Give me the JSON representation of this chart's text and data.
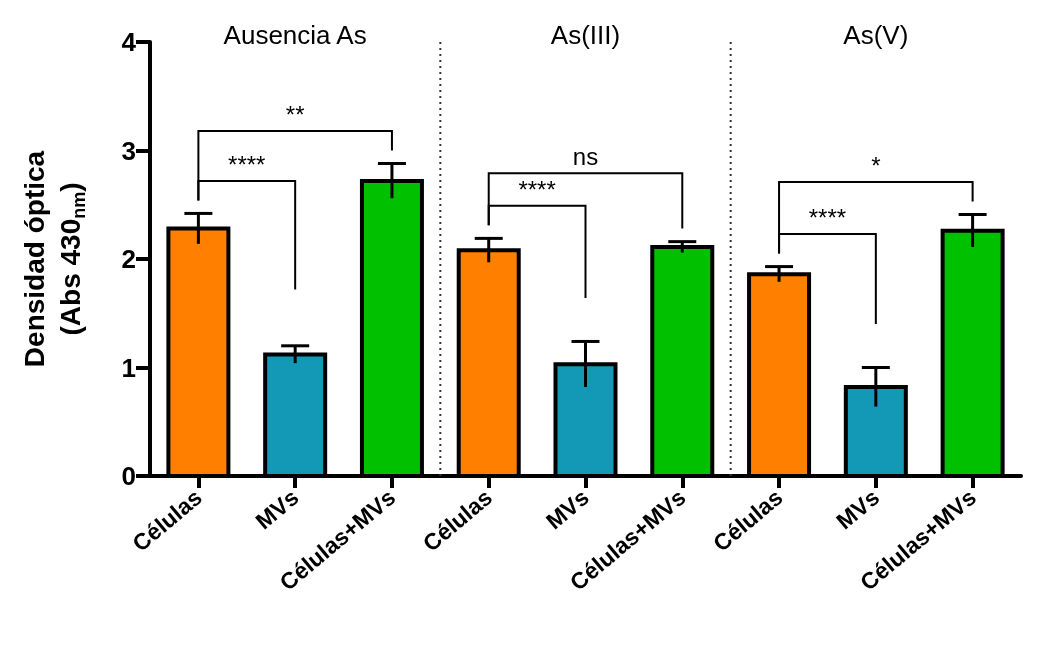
{
  "chart_data": {
    "type": "bar",
    "ylabel": "Densidad óptica\n(Abs 430$_{nm}$)",
    "categories": [
      "Células",
      "MVs",
      "Células+MVs",
      "Células",
      "MVs",
      "Células+MVs",
      "Células",
      "MVs",
      "Células+MVs"
    ],
    "values": [
      2.28,
      1.12,
      2.72,
      2.08,
      1.03,
      2.11,
      1.86,
      0.82,
      2.26
    ],
    "errors": [
      0.14,
      0.08,
      0.16,
      0.11,
      0.21,
      0.05,
      0.07,
      0.18,
      0.15
    ],
    "colors": [
      "#ff8000",
      "#1399b5",
      "#00c000",
      "#ff8000",
      "#1399b5",
      "#00c000",
      "#ff8000",
      "#1399b5",
      "#00c000"
    ],
    "ylim": [
      0,
      4
    ],
    "yticks": [
      0,
      1,
      2,
      3,
      4
    ],
    "grid": false,
    "annotations": [
      "Ausencia As",
      "As(III)",
      "As(V)",
      "****",
      "**",
      "****",
      "ns",
      "****",
      "*"
    ]
  }
}
